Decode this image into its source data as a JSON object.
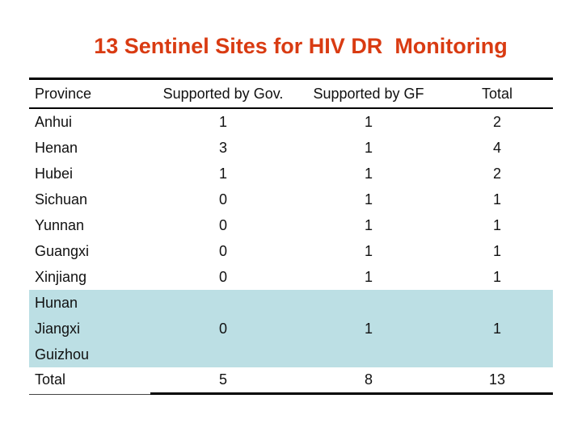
{
  "title": "13 Sentinel Sites for HIV DR  Monitoring",
  "colors": {
    "title_text": "#d93b12",
    "highlight_band": "#bcdfe4",
    "body_text": "#111111",
    "rule": "#000000"
  },
  "table": {
    "headers": {
      "province": "Province",
      "gov": "Supported by Gov.",
      "gf": "Supported by GF",
      "total": "Total"
    },
    "rows": [
      {
        "province": "Anhui",
        "gov": "1",
        "gf": "1",
        "total": "2",
        "highlighted": false
      },
      {
        "province": "Henan",
        "gov": "3",
        "gf": "1",
        "total": "4",
        "highlighted": false
      },
      {
        "province": "Hubei",
        "gov": "1",
        "gf": "1",
        "total": "2",
        "highlighted": false
      },
      {
        "province": "Sichuan",
        "gov": "0",
        "gf": "1",
        "total": "1",
        "highlighted": false
      },
      {
        "province": "Yunnan",
        "gov": "0",
        "gf": "1",
        "total": "1",
        "highlighted": false
      },
      {
        "province": "Guangxi",
        "gov": "0",
        "gf": "1",
        "total": "1",
        "highlighted": false
      },
      {
        "province": "Xinjiang",
        "gov": "0",
        "gf": "1",
        "total": "1",
        "highlighted": false
      },
      {
        "province": "Hunan",
        "gov": "",
        "gf": "",
        "total": "",
        "highlighted": true
      },
      {
        "province": "Jiangxi",
        "gov": "0",
        "gf": "1",
        "total": "1",
        "highlighted": true
      },
      {
        "province": "Guizhou",
        "gov": "",
        "gf": "",
        "total": "",
        "highlighted": true
      }
    ],
    "total_row": {
      "province": "Total",
      "gov": "5",
      "gf": "8",
      "total": "13"
    }
  }
}
